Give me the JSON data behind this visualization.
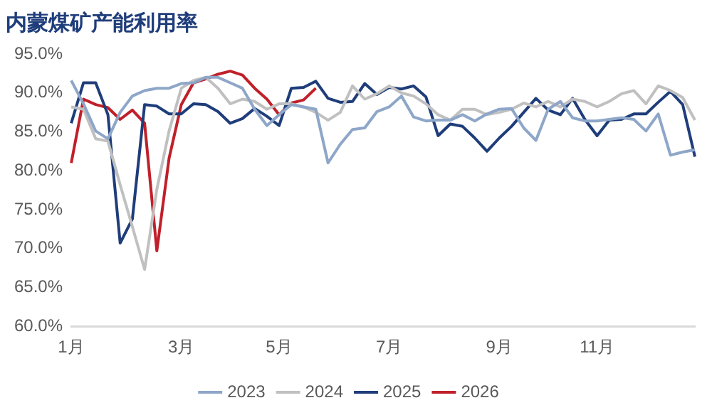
{
  "chart_data": {
    "type": "line",
    "title": "内蒙煤矿产能利用率",
    "categories": [
      "1月",
      null,
      null,
      null,
      null,
      null,
      null,
      null,
      null,
      "3月",
      null,
      null,
      null,
      null,
      null,
      null,
      null,
      "5月",
      null,
      null,
      null,
      null,
      null,
      null,
      null,
      null,
      "7月",
      null,
      null,
      null,
      null,
      null,
      null,
      null,
      null,
      "9月",
      null,
      null,
      null,
      null,
      null,
      null,
      null,
      "11月",
      null,
      null,
      null,
      null,
      null,
      null,
      null,
      null
    ],
    "ylim": [
      60,
      95
    ],
    "yticks": [
      {
        "value": 60,
        "label": "60.0%"
      },
      {
        "value": 65,
        "label": "65.0%"
      },
      {
        "value": 70,
        "label": "70.0%"
      },
      {
        "value": 75,
        "label": "75.0%"
      },
      {
        "value": 80,
        "label": "80.0%"
      },
      {
        "value": 85,
        "label": "85.0%"
      },
      {
        "value": 90,
        "label": "90.0%"
      },
      {
        "value": 95,
        "label": "95.0%"
      }
    ],
    "grid": false,
    "legend": "bottom",
    "series": [
      {
        "name": "2023",
        "color": "#8ea6c8",
        "values": [
          91.6,
          88.6,
          85.1,
          84.1,
          87.5,
          89.6,
          90.3,
          90.6,
          90.6,
          91.2,
          91.3,
          92.0,
          92.0,
          91.3,
          90.6,
          87.9,
          85.8,
          87.2,
          88.5,
          88.2,
          87.9,
          81.0,
          83.4,
          85.3,
          85.5,
          87.6,
          88.2,
          89.6,
          86.9,
          86.4,
          86.5,
          86.5,
          87.2,
          86.4,
          87.3,
          87.9,
          88.0,
          85.5,
          83.9,
          87.9,
          88.9,
          86.8,
          86.4,
          86.4,
          86.6,
          86.8,
          86.6,
          85.1,
          87.3,
          82.0,
          82.4,
          82.7
        ]
      },
      {
        "name": "2024",
        "color": "#c0c0c0",
        "values": [
          88.2,
          87.9,
          84.1,
          83.8,
          78.2,
          72.8,
          67.3,
          77.6,
          85.1,
          90.6,
          91.6,
          92.0,
          90.6,
          88.6,
          89.2,
          88.9,
          87.9,
          88.6,
          88.6,
          88.2,
          87.5,
          86.5,
          87.5,
          90.9,
          89.2,
          89.9,
          90.9,
          90.0,
          89.6,
          88.6,
          87.2,
          86.5,
          87.9,
          87.9,
          87.2,
          87.5,
          87.9,
          88.7,
          88.2,
          88.9,
          88.2,
          89.2,
          88.9,
          88.2,
          88.9,
          89.9,
          90.3,
          88.6,
          90.9,
          90.3,
          89.4,
          86.5
        ]
      },
      {
        "name": "2025",
        "color": "#1f3d7a",
        "values": [
          86.1,
          91.3,
          91.3,
          87.2,
          70.7,
          73.8,
          88.5,
          88.3,
          87.3,
          87.3,
          88.6,
          88.5,
          87.6,
          86.1,
          86.7,
          88.0,
          87.0,
          85.8,
          90.6,
          90.7,
          91.5,
          89.3,
          88.8,
          88.9,
          91.2,
          89.8,
          90.7,
          90.5,
          90.9,
          89.5,
          84.5,
          86.0,
          85.7,
          84.2,
          82.5,
          84.2,
          85.7,
          87.5,
          89.3,
          87.8,
          87.2,
          89.3,
          86.6,
          84.5,
          86.5,
          86.6,
          87.3,
          87.3,
          88.8,
          90.2,
          88.5,
          81.8
        ]
      },
      {
        "name": "2026",
        "color": "#c0202a",
        "values": [
          81.0,
          89.2,
          88.5,
          88.1,
          86.6,
          87.8,
          86.1,
          69.7,
          81.6,
          88.5,
          91.3,
          91.8,
          92.4,
          92.8,
          92.3,
          90.6,
          89.2,
          87.2,
          88.7,
          89.1,
          90.6,
          null,
          null,
          null,
          null,
          null,
          null,
          null,
          null,
          null,
          null,
          null,
          null,
          null,
          null,
          null,
          null,
          null,
          null,
          null,
          null,
          null,
          null,
          null,
          null,
          null,
          null,
          null,
          null,
          null,
          null,
          null
        ]
      }
    ]
  }
}
